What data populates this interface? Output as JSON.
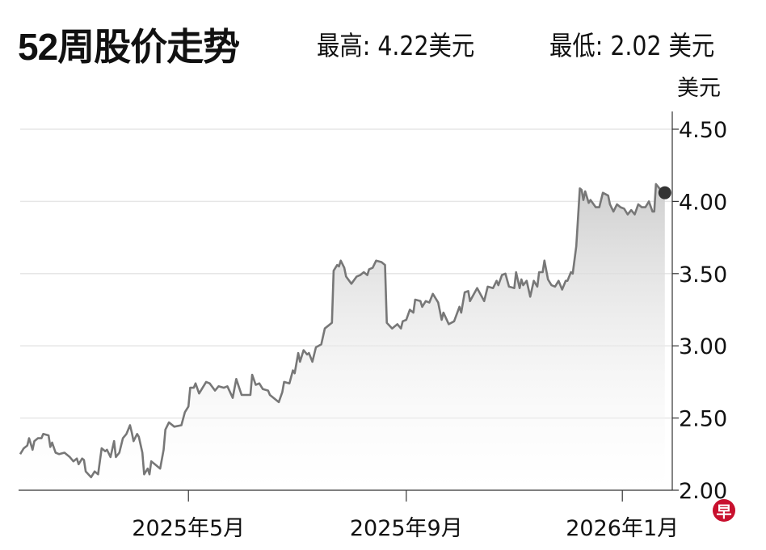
{
  "header": {
    "title": "52周股价走势",
    "high_label": "最高: 4.22美元",
    "low_label": "最低: 2.02 美元"
  },
  "logo": {
    "text": "早",
    "color": "#c8102e"
  },
  "chart_data": {
    "type": "area",
    "title": "52周股价走势",
    "ylabel": "美元",
    "y_axis_position": "right",
    "ylim": [
      2.0,
      4.5
    ],
    "yticks": [
      2.0,
      2.5,
      3.0,
      3.5,
      4.0,
      4.5
    ],
    "ytick_labels": [
      "2.00",
      "2.50",
      "3.00",
      "3.50",
      "4.00",
      "4.50"
    ],
    "xlim": [
      "2025-01-26",
      "2026-01-26"
    ],
    "xticks": [
      "2025-05-01",
      "2025-09-01",
      "2026-01-01"
    ],
    "xtick_labels": [
      "2025年5月",
      "2025年9月",
      "2026年1月"
    ],
    "grid": true,
    "line_color": "#777777",
    "marker_color": "#333333",
    "annotations": {
      "high": 4.22,
      "low": 2.02
    },
    "dates": [
      "2025-01-26",
      "2025-01-28",
      "2025-01-30",
      "2025-01-31",
      "2025-02-02",
      "2025-02-03",
      "2025-02-05",
      "2025-02-07",
      "2025-02-08",
      "2025-02-11",
      "2025-02-12",
      "2025-02-13",
      "2025-02-15",
      "2025-02-17",
      "2025-02-20",
      "2025-02-23",
      "2025-02-25",
      "2025-02-27",
      "2025-02-28",
      "2025-03-02",
      "2025-03-03",
      "2025-03-04",
      "2025-03-07",
      "2025-03-09",
      "2025-03-11",
      "2025-03-13",
      "2025-03-15",
      "2025-03-16",
      "2025-03-18",
      "2025-03-20",
      "2025-03-21",
      "2025-03-23",
      "2025-03-25",
      "2025-03-27",
      "2025-03-29",
      "2025-03-30",
      "2025-03-31",
      "2025-04-02",
      "2025-04-03",
      "2025-04-05",
      "2025-04-06",
      "2025-04-08",
      "2025-04-09",
      "2025-04-10",
      "2025-04-12",
      "2025-04-15",
      "2025-04-17",
      "2025-04-18",
      "2025-04-20",
      "2025-04-23",
      "2025-04-27",
      "2025-04-29",
      "2025-05-01",
      "2025-05-02",
      "2025-05-04",
      "2025-05-05",
      "2025-05-07",
      "2025-05-11",
      "2025-05-13",
      "2025-05-16",
      "2025-05-18",
      "2025-05-21",
      "2025-05-23",
      "2025-05-26",
      "2025-05-28",
      "2025-05-31",
      "2025-06-05",
      "2025-06-06",
      "2025-06-08",
      "2025-06-10",
      "2025-06-12",
      "2025-06-15",
      "2025-06-16",
      "2025-06-21",
      "2025-06-23",
      "2025-06-24",
      "2025-06-27",
      "2025-06-29",
      "2025-06-30",
      "2025-07-02",
      "2025-07-03",
      "2025-07-05",
      "2025-07-07",
      "2025-07-08",
      "2025-07-10",
      "2025-07-12",
      "2025-07-15",
      "2025-07-17",
      "2025-07-19",
      "2025-07-21",
      "2025-07-22",
      "2025-07-24",
      "2025-07-25",
      "2025-07-26",
      "2025-07-28",
      "2025-07-29",
      "2025-08-01",
      "2025-08-04",
      "2025-08-06",
      "2025-08-08",
      "2025-08-10",
      "2025-08-11",
      "2025-08-13",
      "2025-08-15",
      "2025-08-18",
      "2025-08-20",
      "2025-08-21",
      "2025-08-24",
      "2025-08-27",
      "2025-08-29",
      "2025-08-30",
      "2025-09-01",
      "2025-09-03",
      "2025-09-05",
      "2025-09-06",
      "2025-09-09",
      "2025-09-10",
      "2025-09-12",
      "2025-09-14",
      "2025-09-16",
      "2025-09-19",
      "2025-09-21",
      "2025-09-22",
      "2025-09-25",
      "2025-09-28",
      "2025-10-01",
      "2025-10-02",
      "2025-10-04",
      "2025-10-06",
      "2025-10-07",
      "2025-10-11",
      "2025-10-15",
      "2025-10-17",
      "2025-10-20",
      "2025-10-22",
      "2025-10-23",
      "2025-10-25",
      "2025-10-27",
      "2025-10-29",
      "2025-11-01",
      "2025-11-02",
      "2025-11-04",
      "2025-11-05",
      "2025-11-06",
      "2025-11-08",
      "2025-11-10",
      "2025-11-12",
      "2025-11-14",
      "2025-11-15",
      "2025-11-17",
      "2025-11-18",
      "2025-11-20",
      "2025-11-22",
      "2025-11-24",
      "2025-11-26",
      "2025-11-28",
      "2025-11-30",
      "2025-12-01",
      "2025-12-03",
      "2025-12-04",
      "2025-12-06",
      "2025-12-08",
      "2025-12-09",
      "2025-12-10",
      "2025-12-11",
      "2025-12-13",
      "2025-12-14",
      "2025-12-17",
      "2025-12-19",
      "2025-12-21",
      "2025-12-24",
      "2025-12-25",
      "2025-12-27",
      "2025-12-29",
      "2025-12-31",
      "2026-01-02",
      "2026-01-04",
      "2026-01-06",
      "2026-01-08",
      "2026-01-10",
      "2026-01-12",
      "2026-01-14",
      "2026-01-16",
      "2026-01-18",
      "2026-01-19",
      "2026-01-20",
      "2026-01-22",
      "2026-01-25"
    ],
    "values": [
      2.25,
      2.29,
      2.31,
      2.36,
      2.28,
      2.34,
      2.36,
      2.36,
      2.39,
      2.38,
      2.3,
      2.33,
      2.26,
      2.25,
      2.26,
      2.23,
      2.2,
      2.22,
      2.18,
      2.22,
      2.21,
      2.13,
      2.09,
      2.13,
      2.11,
      2.29,
      2.27,
      2.28,
      2.23,
      2.34,
      2.23,
      2.26,
      2.36,
      2.39,
      2.45,
      2.4,
      2.34,
      2.39,
      2.37,
      2.26,
      2.11,
      2.15,
      2.11,
      2.2,
      2.18,
      2.15,
      2.28,
      2.42,
      2.47,
      2.44,
      2.45,
      2.54,
      2.58,
      2.71,
      2.71,
      2.74,
      2.67,
      2.75,
      2.74,
      2.69,
      2.72,
      2.71,
      2.72,
      2.64,
      2.77,
      2.66,
      2.66,
      2.8,
      2.73,
      2.74,
      2.7,
      2.69,
      2.66,
      2.61,
      2.68,
      2.75,
      2.74,
      2.83,
      2.81,
      2.95,
      2.89,
      2.97,
      2.94,
      2.95,
      2.89,
      2.99,
      3.01,
      3.12,
      3.14,
      3.16,
      3.52,
      3.56,
      3.55,
      3.59,
      3.54,
      3.48,
      3.43,
      3.48,
      3.49,
      3.51,
      3.49,
      3.53,
      3.54,
      3.59,
      3.58,
      3.56,
      3.16,
      3.12,
      3.15,
      3.12,
      3.17,
      3.18,
      3.25,
      3.23,
      3.32,
      3.31,
      3.27,
      3.31,
      3.3,
      3.36,
      3.3,
      3.18,
      3.23,
      3.15,
      3.17,
      3.27,
      3.23,
      3.37,
      3.38,
      3.31,
      3.4,
      3.31,
      3.41,
      3.4,
      3.45,
      3.42,
      3.49,
      3.5,
      3.41,
      3.4,
      3.51,
      3.4,
      3.46,
      3.42,
      3.45,
      3.34,
      3.45,
      3.41,
      3.51,
      3.51,
      3.59,
      3.46,
      3.42,
      3.41,
      3.45,
      3.39,
      3.45,
      3.45,
      3.51,
      3.5,
      3.69,
      4.09,
      4.08,
      4.01,
      4.07,
      3.99,
      4.01,
      3.96,
      3.96,
      4.06,
      4.04,
      3.98,
      3.93,
      3.98,
      3.96,
      3.95,
      3.91,
      3.94,
      3.91,
      3.98,
      3.96,
      3.96,
      4.0,
      3.93,
      3.93,
      4.12,
      4.09,
      4.06
    ]
  }
}
